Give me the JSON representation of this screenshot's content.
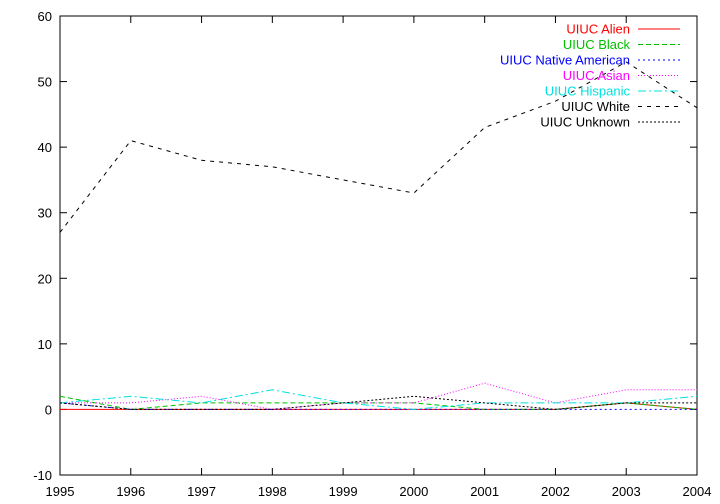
{
  "chart_data": {
    "type": "line",
    "title": "",
    "xlabel": "",
    "ylabel": "",
    "xlim": [
      1995,
      2004
    ],
    "ylim": [
      -10,
      60
    ],
    "x": [
      1995,
      1996,
      1997,
      1998,
      1999,
      2000,
      2001,
      2002,
      2003,
      2004
    ],
    "xticks": [
      "1995",
      "1996",
      "1997",
      "1998",
      "1999",
      "2000",
      "2001",
      "2002",
      "2003",
      "2004"
    ],
    "yticks": [
      "-10",
      "0",
      "10",
      "20",
      "30",
      "40",
      "50",
      "60"
    ],
    "grid": false,
    "legend": "top-right",
    "series": [
      {
        "name": "UIUC Alien",
        "color": "#ff0000",
        "dash": "",
        "values": [
          0,
          0,
          0,
          0,
          0,
          0,
          0,
          0,
          1,
          0
        ]
      },
      {
        "name": "UIUC Black",
        "color": "#00c000",
        "dash": "5,3",
        "values": [
          2,
          0,
          1,
          1,
          1,
          1,
          0,
          0,
          1,
          0
        ]
      },
      {
        "name": "UIUC Native American",
        "color": "#0000ff",
        "dash": "2,3",
        "values": [
          1,
          0,
          0,
          0,
          0,
          0,
          0,
          0,
          0,
          0
        ]
      },
      {
        "name": "UIUC Asian",
        "color": "#ff00ff",
        "dash": "1,2",
        "values": [
          1,
          1,
          2,
          0,
          1,
          1,
          4,
          1,
          3,
          3
        ]
      },
      {
        "name": "UIUC Hispanic",
        "color": "#00e0e0",
        "dash": "8,3,2,3",
        "values": [
          1,
          2,
          1,
          3,
          1,
          0,
          1,
          1,
          1,
          2
        ]
      },
      {
        "name": "UIUC White",
        "color": "#000000",
        "dash": "4,5",
        "values": [
          27,
          41,
          38,
          37,
          35,
          33,
          43,
          47,
          53,
          46
        ]
      },
      {
        "name": "UIUC Unknown",
        "color": "#000000",
        "dash": "2,2",
        "values": [
          1,
          0,
          0,
          0,
          1,
          2,
          1,
          0,
          1,
          1
        ]
      }
    ]
  }
}
